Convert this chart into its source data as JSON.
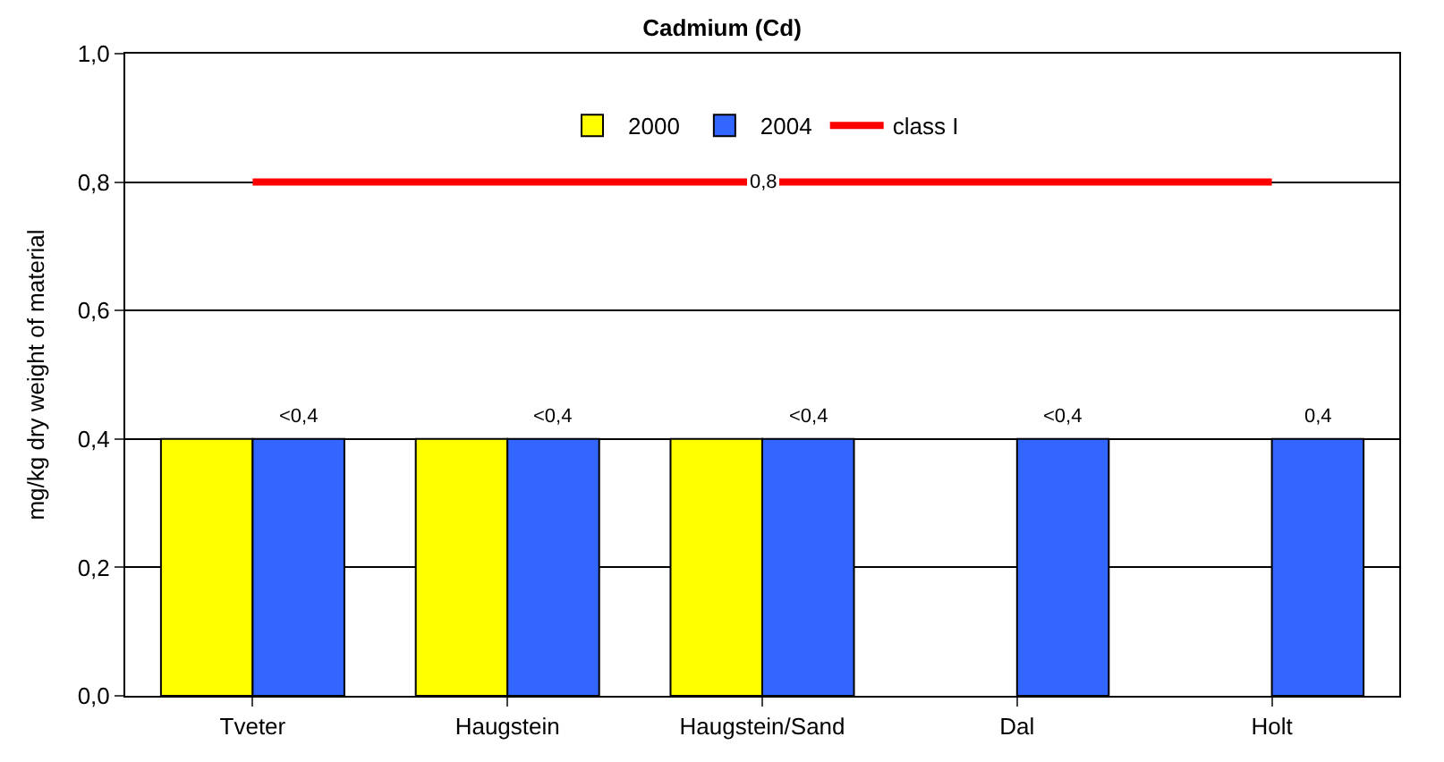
{
  "chart_data": {
    "type": "bar",
    "title": "Cadmium (Cd)",
    "ylabel": "mg/kg dry weight of material",
    "categories": [
      "Tveter",
      "Haugstein",
      "Haugstein/Sand",
      "Dal",
      "Holt"
    ],
    "series": [
      {
        "name": "2000",
        "color": "#ffff00",
        "values": [
          0.4,
          0.4,
          0.4,
          null,
          null
        ]
      },
      {
        "name": "2004",
        "color": "#3366ff",
        "values": [
          0.4,
          0.4,
          0.4,
          0.4,
          0.4
        ],
        "value_labels": [
          "<0,4",
          "<0,4",
          "<0,4",
          "<0,4",
          "0,4"
        ]
      },
      {
        "name": "class I",
        "type": "line",
        "color": "#ff0000",
        "values": [
          0.8,
          0.8,
          0.8,
          0.8,
          0.8
        ],
        "value_labels": [
          null,
          null,
          "0,8",
          null,
          null
        ]
      }
    ],
    "ylim": [
      0,
      1
    ],
    "yticks": [
      {
        "value": 0,
        "label": "0,0"
      },
      {
        "value": 0.2,
        "label": "0,2"
      },
      {
        "value": 0.4,
        "label": "0,4"
      },
      {
        "value": 0.6,
        "label": "0,6"
      },
      {
        "value": 0.8,
        "label": "0,8"
      },
      {
        "value": 1,
        "label": "1,0"
      }
    ],
    "grid": "y",
    "legend": "top"
  }
}
